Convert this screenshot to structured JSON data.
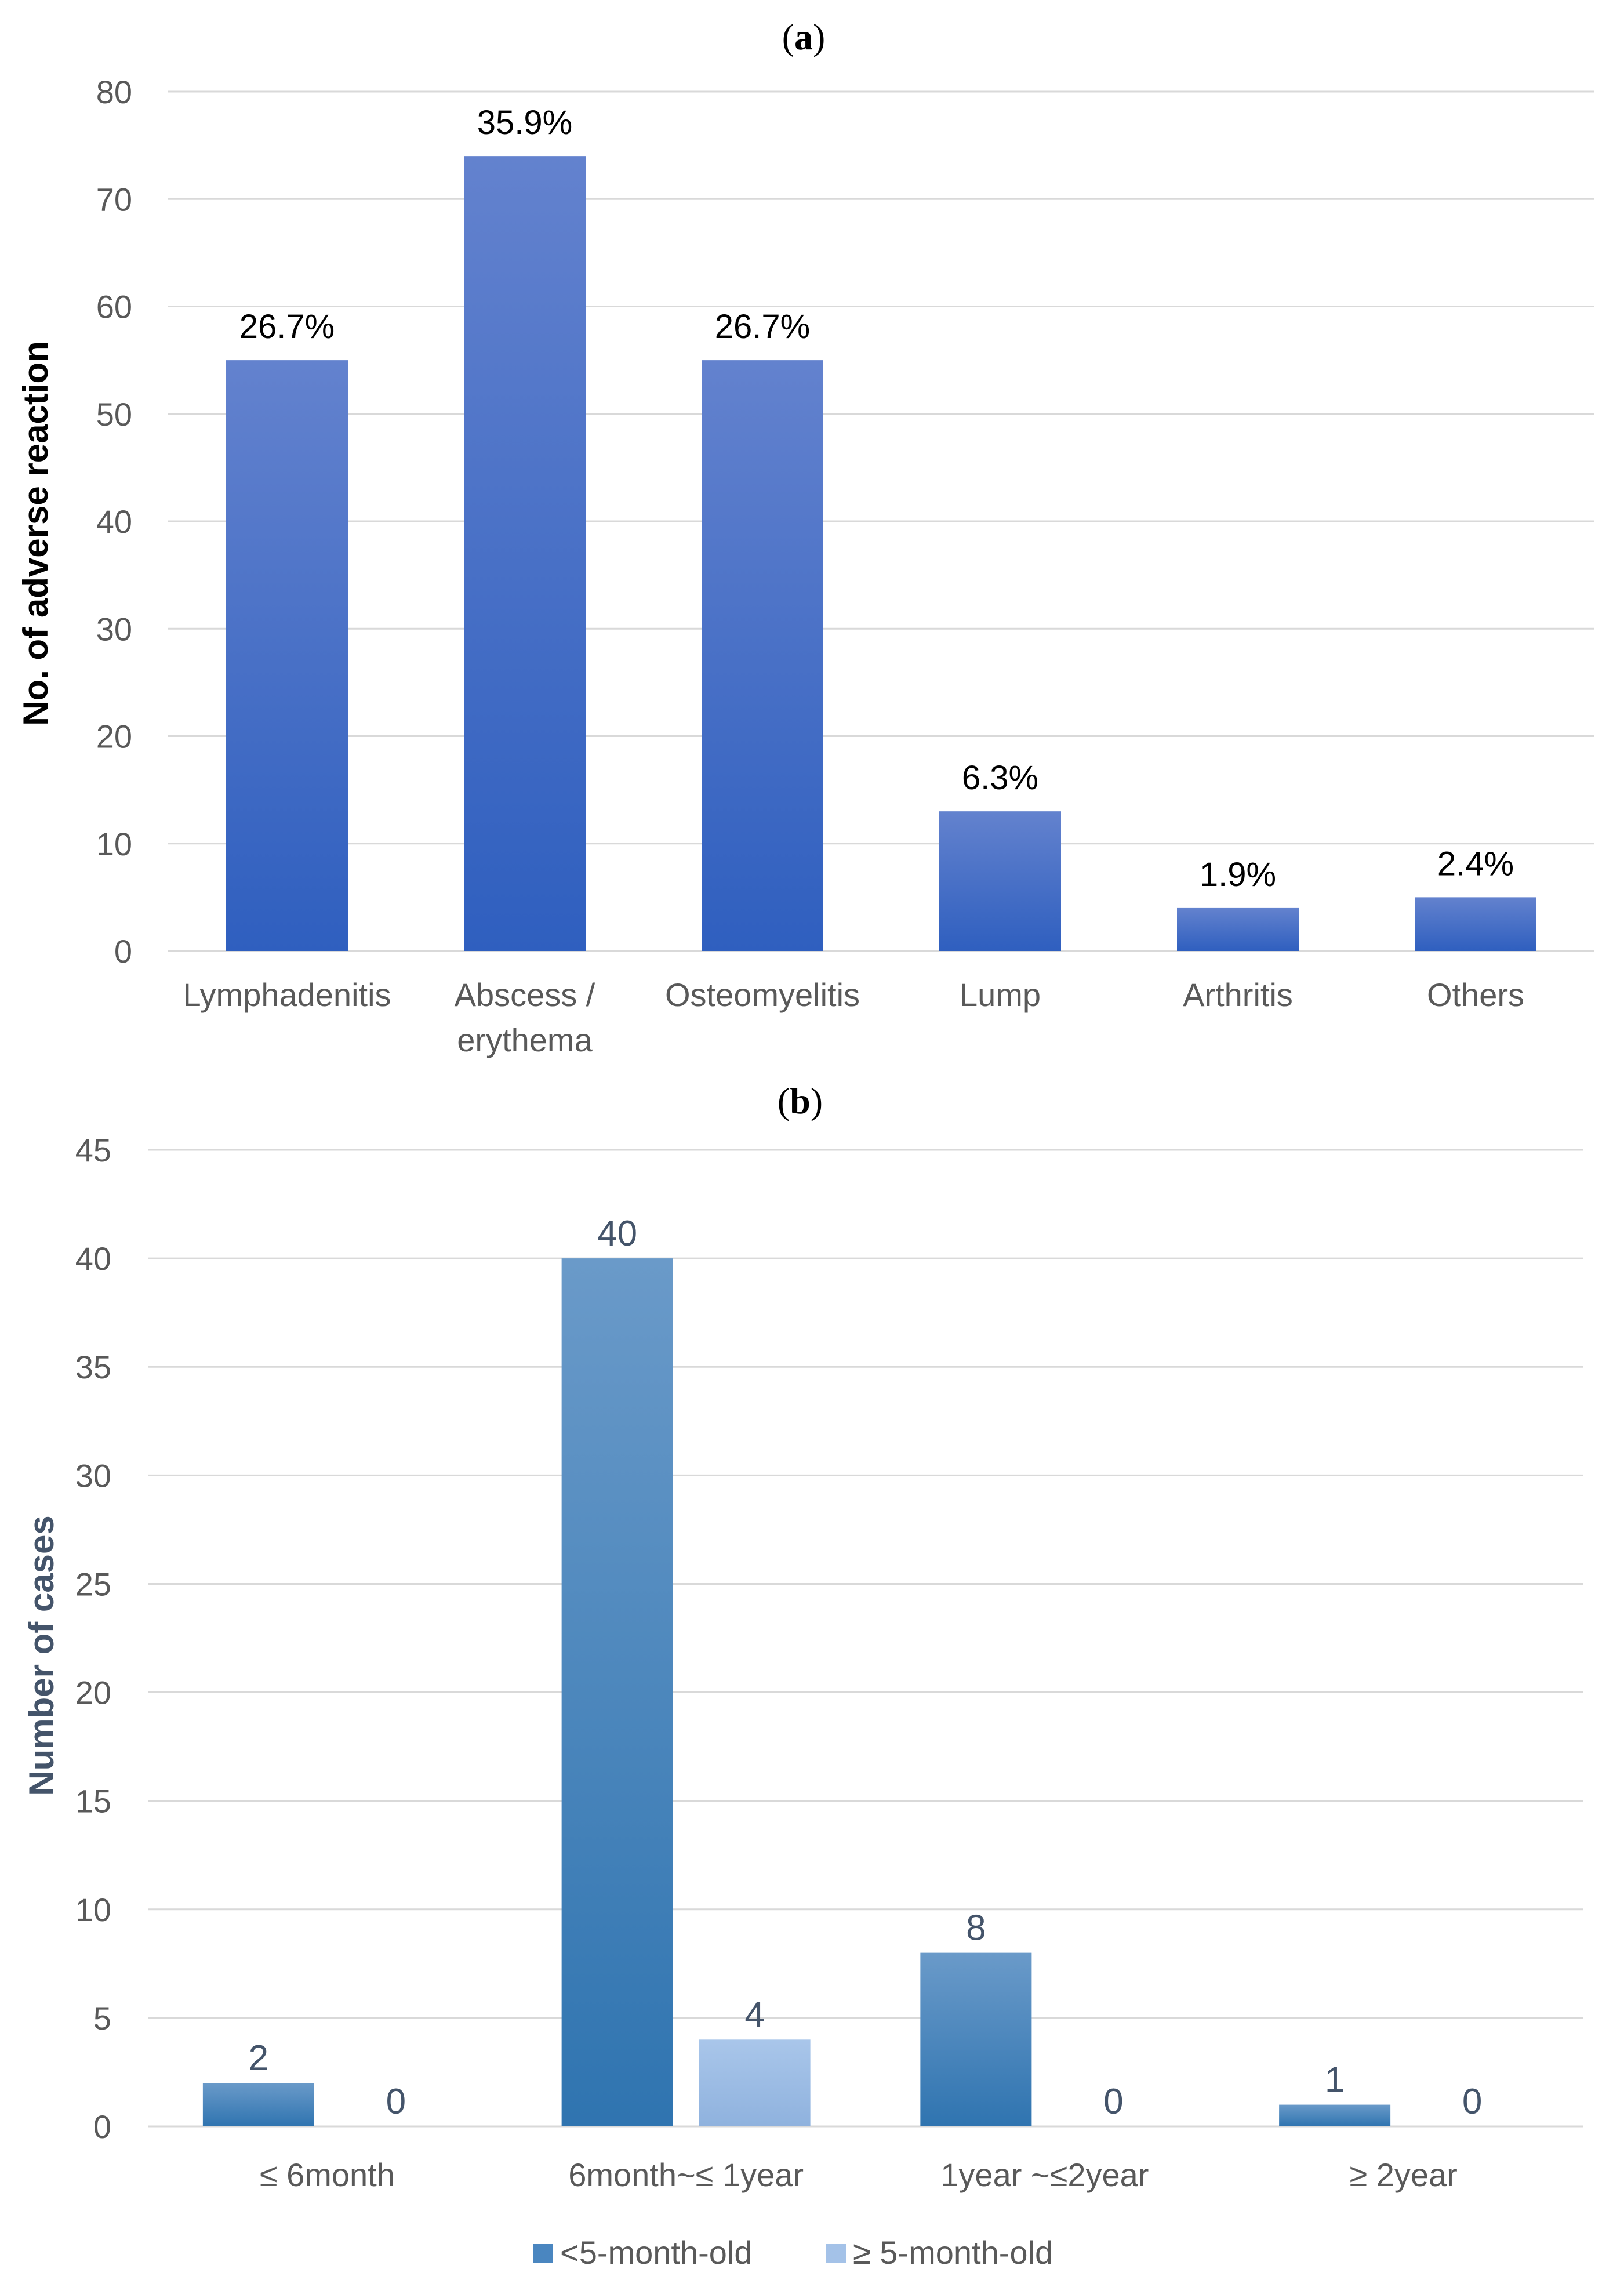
{
  "colors": {
    "bar_a": "#4472c4",
    "series_b1": "#4a86c0",
    "series_b2": "#a4c2e8",
    "grid": "#d9d9d9",
    "ylabel_a": "#000000",
    "ylabel_b": "#44546a"
  },
  "chart_data": [
    {
      "type": "bar",
      "panel_label": {
        "open": "(",
        "letter": "a",
        "close": ")"
      },
      "title": "",
      "categories": [
        [
          "Lymphadenitis"
        ],
        [
          "Abscess /",
          "erythema"
        ],
        [
          "Osteomyelitis"
        ],
        [
          "Lump"
        ],
        [
          "Arthritis"
        ],
        [
          "Others"
        ]
      ],
      "values": [
        55,
        74,
        55,
        13,
        4,
        5
      ],
      "data_labels": [
        "26.7%",
        "35.9%",
        "26.7%",
        "6.3%",
        "1.9%",
        "2.4%"
      ],
      "xlabel": "",
      "ylabel": "No. of adverse reaction",
      "ylim": [
        0,
        80
      ],
      "yticks": [
        0,
        10,
        20,
        30,
        40,
        50,
        60,
        70,
        80
      ],
      "grid": true
    },
    {
      "type": "bar",
      "panel_label": {
        "open": "(",
        "letter": "b",
        "close": ")"
      },
      "title": "",
      "categories": [
        "≤ 6month",
        "6month~≤ 1year",
        "1year ~≤2year",
        "≥ 2year"
      ],
      "series": [
        {
          "name": "<5-month-old",
          "values": [
            2,
            40,
            8,
            1
          ],
          "labels": [
            "2",
            "40",
            "8",
            "1"
          ]
        },
        {
          "name": "≥ 5-month-old",
          "values": [
            0,
            4,
            0,
            0
          ],
          "labels": [
            "0",
            "4",
            "0",
            "0"
          ]
        }
      ],
      "xlabel": "",
      "ylabel": "Number of cases",
      "ylim": [
        0,
        45
      ],
      "yticks": [
        0,
        5,
        10,
        15,
        20,
        25,
        30,
        35,
        40,
        45
      ],
      "grid": true,
      "legend_position": "bottom"
    }
  ]
}
